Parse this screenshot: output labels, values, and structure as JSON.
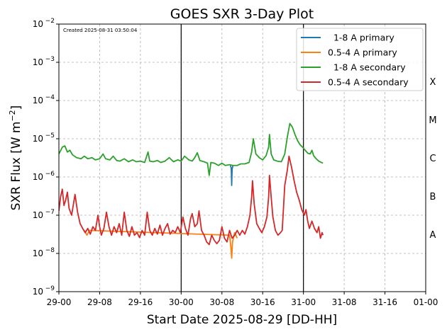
{
  "chart_data": {
    "type": "line",
    "title": "GOES SXR 3-Day Plot",
    "annotation": "Created 2025-08-31 03:50:04",
    "xlabel": "Start Date 2025-08-29 [DD-HH]",
    "ylabel_main": "SXR Flux [W m",
    "ylabel_exp": "−2",
    "ylabel_close": "]",
    "y_scale": "log",
    "ylim": [
      1e-09,
      0.01
    ],
    "xlim": [
      "2025-08-29 00:00",
      "2025-09-01 00:00"
    ],
    "x_ticks": [
      {
        "t": "2025-08-29 00:00",
        "label": "29-00"
      },
      {
        "t": "2025-08-29 08:00",
        "label": "29-08"
      },
      {
        "t": "2025-08-29 16:00",
        "label": "29-16"
      },
      {
        "t": "2025-08-30 00:00",
        "label": "30-00"
      },
      {
        "t": "2025-08-30 08:00",
        "label": "30-08"
      },
      {
        "t": "2025-08-30 16:00",
        "label": "30-16"
      },
      {
        "t": "2025-08-31 00:00",
        "label": "31-00"
      },
      {
        "t": "2025-08-31 08:00",
        "label": "31-08"
      },
      {
        "t": "2025-08-31 16:00",
        "label": "31-16"
      },
      {
        "t": "2025-09-01 00:00",
        "label": "01-00"
      }
    ],
    "y_ticks": [
      {
        "value": 1e-09,
        "base": "10",
        "exp": "−9"
      },
      {
        "value": 1e-08,
        "base": "10",
        "exp": "−8"
      },
      {
        "value": 1e-07,
        "base": "10",
        "exp": "−7"
      },
      {
        "value": 1e-06,
        "base": "10",
        "exp": "−6"
      },
      {
        "value": 1e-05,
        "base": "10",
        "exp": "−5"
      },
      {
        "value": 0.0001,
        "base": "10",
        "exp": "−4"
      },
      {
        "value": 0.001,
        "base": "10",
        "exp": "−3"
      },
      {
        "value": 0.01,
        "base": "10",
        "exp": "−2"
      }
    ],
    "day_lines": [
      "2025-08-30 00:00",
      "2025-08-31 00:00"
    ],
    "flare_classes": [
      {
        "label": "A",
        "low": 1e-08,
        "high": 1e-07
      },
      {
        "label": "B",
        "low": 1e-07,
        "high": 1e-06
      },
      {
        "label": "C",
        "low": 1e-06,
        "high": 1e-05
      },
      {
        "label": "M",
        "low": 1e-05,
        "high": 0.0001
      },
      {
        "label": "X",
        "low": 0.0001,
        "high": 0.001
      }
    ],
    "grid": true,
    "legend_position": "top-right",
    "series": [
      {
        "name": "  1-8 A primary",
        "color": "#1f77b4",
        "points": [
          [
            "2025-08-30 09:40",
            2e-06
          ],
          [
            "2025-08-30 09:50",
            1.7e-06
          ],
          [
            "2025-08-30 09:55",
            6e-07
          ],
          [
            "2025-08-30 10:00",
            1.6e-06
          ],
          [
            "2025-08-30 10:10",
            2e-06
          ]
        ]
      },
      {
        "name": "0.5-4 A primary",
        "color": "#ff7f0e",
        "points": [
          [
            "2025-08-29 05:00",
            4e-08
          ],
          [
            "2025-08-29 05:30",
            3e-08
          ],
          [
            "2025-08-29 06:00",
            4e-08
          ],
          [
            "2025-08-30 09:30",
            3e-08
          ],
          [
            "2025-08-30 09:45",
            1.5e-08
          ],
          [
            "2025-08-30 09:55",
            7.5e-09
          ],
          [
            "2025-08-30 10:05",
            2e-08
          ],
          [
            "2025-08-30 10:30",
            3.5e-08
          ],
          [
            "2025-08-30 11:00",
            2.5e-08
          ]
        ]
      },
      {
        "name": "  1-8 A secondary",
        "color": "#2ca02c",
        "points": [
          [
            "2025-08-29 00:00",
            4e-06
          ],
          [
            "2025-08-29 00:40",
            6e-06
          ],
          [
            "2025-08-29 01:10",
            6.5e-06
          ],
          [
            "2025-08-29 01:40",
            4.5e-06
          ],
          [
            "2025-08-29 02:10",
            5e-06
          ],
          [
            "2025-08-29 02:40",
            3.8e-06
          ],
          [
            "2025-08-29 03:30",
            3.2e-06
          ],
          [
            "2025-08-29 04:20",
            3e-06
          ],
          [
            "2025-08-29 05:00",
            3.5e-06
          ],
          [
            "2025-08-29 05:40",
            3e-06
          ],
          [
            "2025-08-29 06:30",
            3.2e-06
          ],
          [
            "2025-08-29 07:10",
            2.8e-06
          ],
          [
            "2025-08-29 08:00",
            3e-06
          ],
          [
            "2025-08-29 08:40",
            4e-06
          ],
          [
            "2025-08-29 09:10",
            3e-06
          ],
          [
            "2025-08-29 10:00",
            2.8e-06
          ],
          [
            "2025-08-29 10:40",
            3.5e-06
          ],
          [
            "2025-08-29 11:20",
            2.7e-06
          ],
          [
            "2025-08-29 12:00",
            2.6e-06
          ],
          [
            "2025-08-29 12:50",
            3e-06
          ],
          [
            "2025-08-29 13:40",
            2.5e-06
          ],
          [
            "2025-08-29 14:30",
            2.8e-06
          ],
          [
            "2025-08-29 15:10",
            2.5e-06
          ],
          [
            "2025-08-29 16:00",
            2.6e-06
          ],
          [
            "2025-08-29 16:50",
            2.4e-06
          ],
          [
            "2025-08-29 17:30",
            4.5e-06
          ],
          [
            "2025-08-29 17:50",
            2.6e-06
          ],
          [
            "2025-08-29 18:30",
            2.5e-06
          ],
          [
            "2025-08-29 19:20",
            2.7e-06
          ],
          [
            "2025-08-29 20:00",
            2.4e-06
          ],
          [
            "2025-08-29 20:50",
            2.6e-06
          ],
          [
            "2025-08-29 21:40",
            3.2e-06
          ],
          [
            "2025-08-29 22:30",
            2.5e-06
          ],
          [
            "2025-08-29 23:20",
            2.8e-06
          ],
          [
            "2025-08-30 00:00",
            2.6e-06
          ],
          [
            "2025-08-30 00:40",
            3.5e-06
          ],
          [
            "2025-08-30 01:30",
            2.8e-06
          ],
          [
            "2025-08-30 02:10",
            2.6e-06
          ],
          [
            "2025-08-30 02:40",
            3.2e-06
          ],
          [
            "2025-08-30 03:10",
            4.3e-06
          ],
          [
            "2025-08-30 03:40",
            2.7e-06
          ],
          [
            "2025-08-30 04:30",
            2.5e-06
          ],
          [
            "2025-08-30 05:10",
            2.3e-06
          ],
          [
            "2025-08-30 05:30",
            1.1e-06
          ],
          [
            "2025-08-30 05:50",
            2.4e-06
          ],
          [
            "2025-08-30 06:30",
            2.3e-06
          ],
          [
            "2025-08-30 07:20",
            2e-06
          ],
          [
            "2025-08-30 08:00",
            2.3e-06
          ],
          [
            "2025-08-30 08:40",
            2e-06
          ],
          [
            "2025-08-30 09:30",
            2.1e-06
          ],
          [
            "2025-08-30 10:10",
            2e-06
          ],
          [
            "2025-08-30 11:00",
            2e-06
          ],
          [
            "2025-08-30 11:40",
            2.2e-06
          ],
          [
            "2025-08-30 12:30",
            2.2e-06
          ],
          [
            "2025-08-30 13:20",
            2.4e-06
          ],
          [
            "2025-08-30 13:50",
            4.5e-06
          ],
          [
            "2025-08-30 14:10",
            1e-05
          ],
          [
            "2025-08-30 14:40",
            4e-06
          ],
          [
            "2025-08-30 15:20",
            3.2e-06
          ],
          [
            "2025-08-30 16:00",
            2.8e-06
          ],
          [
            "2025-08-30 16:40",
            3.6e-06
          ],
          [
            "2025-08-30 17:10",
            6e-06
          ],
          [
            "2025-08-30 17:20",
            1.3e-05
          ],
          [
            "2025-08-30 17:40",
            4e-06
          ],
          [
            "2025-08-30 18:10",
            2.8e-06
          ],
          [
            "2025-08-30 18:50",
            2.6e-06
          ],
          [
            "2025-08-30 19:40",
            2.5e-06
          ],
          [
            "2025-08-30 20:20",
            4e-06
          ],
          [
            "2025-08-30 20:50",
            1.1e-05
          ],
          [
            "2025-08-30 21:20",
            2.5e-05
          ],
          [
            "2025-08-30 21:50",
            2e-05
          ],
          [
            "2025-08-30 22:20",
            1.3e-05
          ],
          [
            "2025-08-30 22:50",
            9e-06
          ],
          [
            "2025-08-30 23:20",
            7e-06
          ],
          [
            "2025-08-30 23:50",
            6e-06
          ],
          [
            "2025-08-31 00:20",
            5e-06
          ],
          [
            "2025-08-31 00:50",
            4.2e-06
          ],
          [
            "2025-08-31 01:20",
            4e-06
          ],
          [
            "2025-08-31 01:40",
            5e-06
          ],
          [
            "2025-08-31 02:00",
            3.6e-06
          ],
          [
            "2025-08-31 02:30",
            3e-06
          ],
          [
            "2025-08-31 03:00",
            2.6e-06
          ],
          [
            "2025-08-31 03:30",
            2.4e-06
          ],
          [
            "2025-08-31 03:50",
            2.3e-06
          ]
        ]
      },
      {
        "name": "0.5-4 A secondary",
        "color": "#d62728",
        "points": [
          [
            "2025-08-29 00:00",
            1.3e-07
          ],
          [
            "2025-08-29 00:20",
            3e-07
          ],
          [
            "2025-08-29 00:40",
            4.8e-07
          ],
          [
            "2025-08-29 01:00",
            1.8e-07
          ],
          [
            "2025-08-29 01:20",
            2.5e-07
          ],
          [
            "2025-08-29 01:40",
            4e-07
          ],
          [
            "2025-08-29 02:00",
            1.5e-07
          ],
          [
            "2025-08-29 02:30",
            1e-07
          ],
          [
            "2025-08-29 03:10",
            3.5e-07
          ],
          [
            "2025-08-29 03:40",
            1.2e-07
          ],
          [
            "2025-08-29 04:10",
            6e-08
          ],
          [
            "2025-08-29 04:40",
            4.5e-08
          ],
          [
            "2025-08-29 05:10",
            3.5e-08
          ],
          [
            "2025-08-29 05:40",
            4.5e-08
          ],
          [
            "2025-08-29 06:10",
            3.2e-08
          ],
          [
            "2025-08-29 06:40",
            5e-08
          ],
          [
            "2025-08-29 07:10",
            4e-08
          ],
          [
            "2025-08-29 07:40",
            1e-07
          ],
          [
            "2025-08-29 08:00",
            5e-08
          ],
          [
            "2025-08-29 08:20",
            3e-08
          ],
          [
            "2025-08-29 08:50",
            4.5e-08
          ],
          [
            "2025-08-29 09:20",
            1.2e-07
          ],
          [
            "2025-08-29 09:50",
            5e-08
          ],
          [
            "2025-08-29 10:20",
            3e-08
          ],
          [
            "2025-08-29 10:50",
            5e-08
          ],
          [
            "2025-08-29 11:20",
            3.5e-08
          ],
          [
            "2025-08-29 11:50",
            6e-08
          ],
          [
            "2025-08-29 12:20",
            3e-08
          ],
          [
            "2025-08-29 12:50",
            1.2e-07
          ],
          [
            "2025-08-29 13:20",
            4e-08
          ],
          [
            "2025-08-29 13:50",
            2.8e-08
          ],
          [
            "2025-08-29 14:20",
            5e-08
          ],
          [
            "2025-08-29 14:50",
            3e-08
          ],
          [
            "2025-08-29 15:20",
            3.5e-08
          ],
          [
            "2025-08-29 15:50",
            2.6e-08
          ],
          [
            "2025-08-29 16:20",
            4e-08
          ],
          [
            "2025-08-29 16:50",
            3e-08
          ],
          [
            "2025-08-29 17:20",
            1.2e-07
          ],
          [
            "2025-08-29 17:50",
            4e-08
          ],
          [
            "2025-08-29 18:20",
            3e-08
          ],
          [
            "2025-08-29 18:50",
            4.5e-08
          ],
          [
            "2025-08-29 19:20",
            3.2e-08
          ],
          [
            "2025-08-29 19:50",
            5.5e-08
          ],
          [
            "2025-08-29 20:20",
            3e-08
          ],
          [
            "2025-08-29 20:50",
            4.5e-08
          ],
          [
            "2025-08-29 21:20",
            6e-08
          ],
          [
            "2025-08-29 21:50",
            3.2e-08
          ],
          [
            "2025-08-29 22:20",
            4e-08
          ],
          [
            "2025-08-29 22:50",
            3.5e-08
          ],
          [
            "2025-08-29 23:20",
            5e-08
          ],
          [
            "2025-08-29 23:50",
            3.5e-08
          ],
          [
            "2025-08-30 00:20",
            9e-08
          ],
          [
            "2025-08-30 00:50",
            4.5e-08
          ],
          [
            "2025-08-30 01:20",
            3e-08
          ],
          [
            "2025-08-30 01:50",
            8e-08
          ],
          [
            "2025-08-30 02:10",
            1.1e-07
          ],
          [
            "2025-08-30 02:40",
            5e-08
          ],
          [
            "2025-08-30 03:10",
            6e-08
          ],
          [
            "2025-08-30 03:30",
            1.3e-07
          ],
          [
            "2025-08-30 04:00",
            4e-08
          ],
          [
            "2025-08-30 04:30",
            3e-08
          ],
          [
            "2025-08-30 05:00",
            2e-08
          ],
          [
            "2025-08-30 05:30",
            1.7e-08
          ],
          [
            "2025-08-30 06:00",
            3e-08
          ],
          [
            "2025-08-30 06:30",
            2.2e-08
          ],
          [
            "2025-08-30 07:00",
            1.8e-08
          ],
          [
            "2025-08-30 07:30",
            2.2e-08
          ],
          [
            "2025-08-30 08:00",
            5e-08
          ],
          [
            "2025-08-30 08:30",
            2.5e-08
          ],
          [
            "2025-08-30 09:00",
            2e-08
          ],
          [
            "2025-08-30 09:30",
            4e-08
          ],
          [
            "2025-08-30 10:00",
            2.5e-08
          ],
          [
            "2025-08-30 10:30",
            3e-08
          ],
          [
            "2025-08-30 11:00",
            4e-08
          ],
          [
            "2025-08-30 11:30",
            3e-08
          ],
          [
            "2025-08-30 12:00",
            4e-08
          ],
          [
            "2025-08-30 12:30",
            3.2e-08
          ],
          [
            "2025-08-30 13:00",
            5e-08
          ],
          [
            "2025-08-30 13:30",
            1e-07
          ],
          [
            "2025-08-30 13:50",
            3e-07
          ],
          [
            "2025-08-30 14:00",
            8e-07
          ],
          [
            "2025-08-30 14:20",
            2e-07
          ],
          [
            "2025-08-30 14:50",
            6e-08
          ],
          [
            "2025-08-30 15:20",
            4.5e-08
          ],
          [
            "2025-08-30 15:50",
            3.5e-08
          ],
          [
            "2025-08-30 16:20",
            5e-08
          ],
          [
            "2025-08-30 16:50",
            9e-08
          ],
          [
            "2025-08-30 17:10",
            3e-07
          ],
          [
            "2025-08-30 17:20",
            1.1e-06
          ],
          [
            "2025-08-30 17:40",
            3e-07
          ],
          [
            "2025-08-30 18:00",
            9e-08
          ],
          [
            "2025-08-30 18:30",
            4e-08
          ],
          [
            "2025-08-30 19:00",
            3e-08
          ],
          [
            "2025-08-30 19:30",
            3.5e-08
          ],
          [
            "2025-08-30 19:50",
            4e-08
          ],
          [
            "2025-08-30 20:20",
            6e-07
          ],
          [
            "2025-08-30 20:50",
            1.5e-06
          ],
          [
            "2025-08-30 21:10",
            3.5e-06
          ],
          [
            "2025-08-30 21:40",
            1.8e-06
          ],
          [
            "2025-08-30 22:10",
            8e-07
          ],
          [
            "2025-08-30 22:40",
            4e-07
          ],
          [
            "2025-08-30 23:10",
            2.5e-07
          ],
          [
            "2025-08-30 23:40",
            1.4e-07
          ],
          [
            "2025-08-31 00:10",
            1e-07
          ],
          [
            "2025-08-31 00:30",
            1.4e-07
          ],
          [
            "2025-08-31 00:50",
            7e-08
          ],
          [
            "2025-08-31 01:10",
            4.5e-08
          ],
          [
            "2025-08-31 01:40",
            7e-08
          ],
          [
            "2025-08-31 02:10",
            4.5e-08
          ],
          [
            "2025-08-31 02:40",
            3.5e-08
          ],
          [
            "2025-08-31 03:00",
            5e-08
          ],
          [
            "2025-08-31 03:20",
            2.5e-08
          ],
          [
            "2025-08-31 03:40",
            3.5e-08
          ],
          [
            "2025-08-31 03:50",
            3e-08
          ]
        ]
      }
    ]
  }
}
